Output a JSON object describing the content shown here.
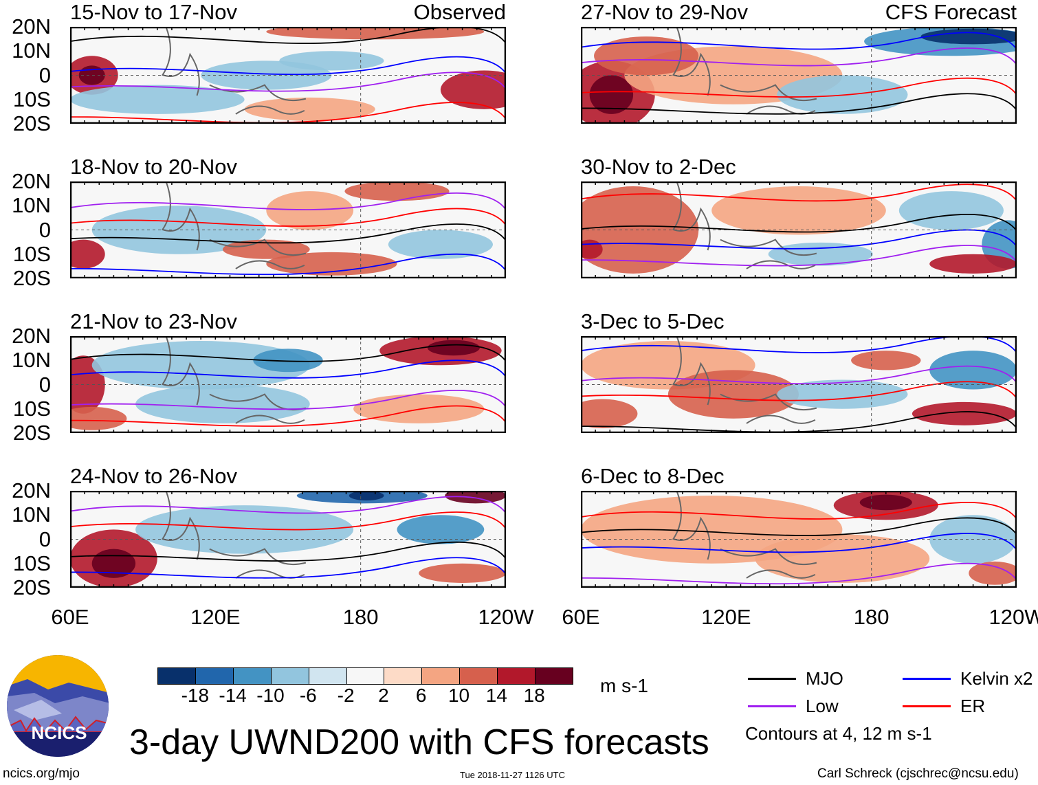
{
  "panels": [
    {
      "title": "15-Nov to 17-Nov",
      "tag": "Observed"
    },
    {
      "title": "27-Nov to 29-Nov",
      "tag": "CFS Forecast"
    },
    {
      "title": "18-Nov to 20-Nov"
    },
    {
      "title": "30-Nov to 2-Dec"
    },
    {
      "title": "21-Nov to 23-Nov"
    },
    {
      "title": "3-Dec to 5-Dec"
    },
    {
      "title": "24-Nov to 26-Nov"
    },
    {
      "title": "6-Dec to 8-Dec"
    }
  ],
  "lat_labels": [
    "20N",
    "10N",
    "0",
    "10S",
    "20S"
  ],
  "lon_labels": [
    "60E",
    "120E",
    "180",
    "120W"
  ],
  "colorbar": {
    "colors": [
      "#08306b",
      "#2166ac",
      "#4393c3",
      "#92c5de",
      "#d1e5f0",
      "#f7f7f7",
      "#fddbc7",
      "#f4a582",
      "#d6604d",
      "#b2182b",
      "#67001f"
    ],
    "labels": [
      "-18",
      "-14",
      "-10",
      "-6",
      "-2",
      "2",
      "6",
      "10",
      "14",
      "18"
    ],
    "units": "m s-1"
  },
  "legend": {
    "items": [
      {
        "label": "MJO",
        "color": "#000000"
      },
      {
        "label": "Kelvin x2",
        "color": "#0000ff"
      },
      {
        "label": "Low",
        "color": "#a020f0"
      },
      {
        "label": "ER",
        "color": "#ff0000"
      }
    ],
    "note": "Contours at 4, 12 m s-1"
  },
  "logo": {
    "text": "NCICS"
  },
  "title": "3-day UWND200 with CFS forecasts",
  "footer": {
    "url": "ncics.org/mjo",
    "timestamp": "Tue 2018-11-27 1126 UTC",
    "author": "Carl Schreck (cjschrec@ncsu.edu)"
  }
}
